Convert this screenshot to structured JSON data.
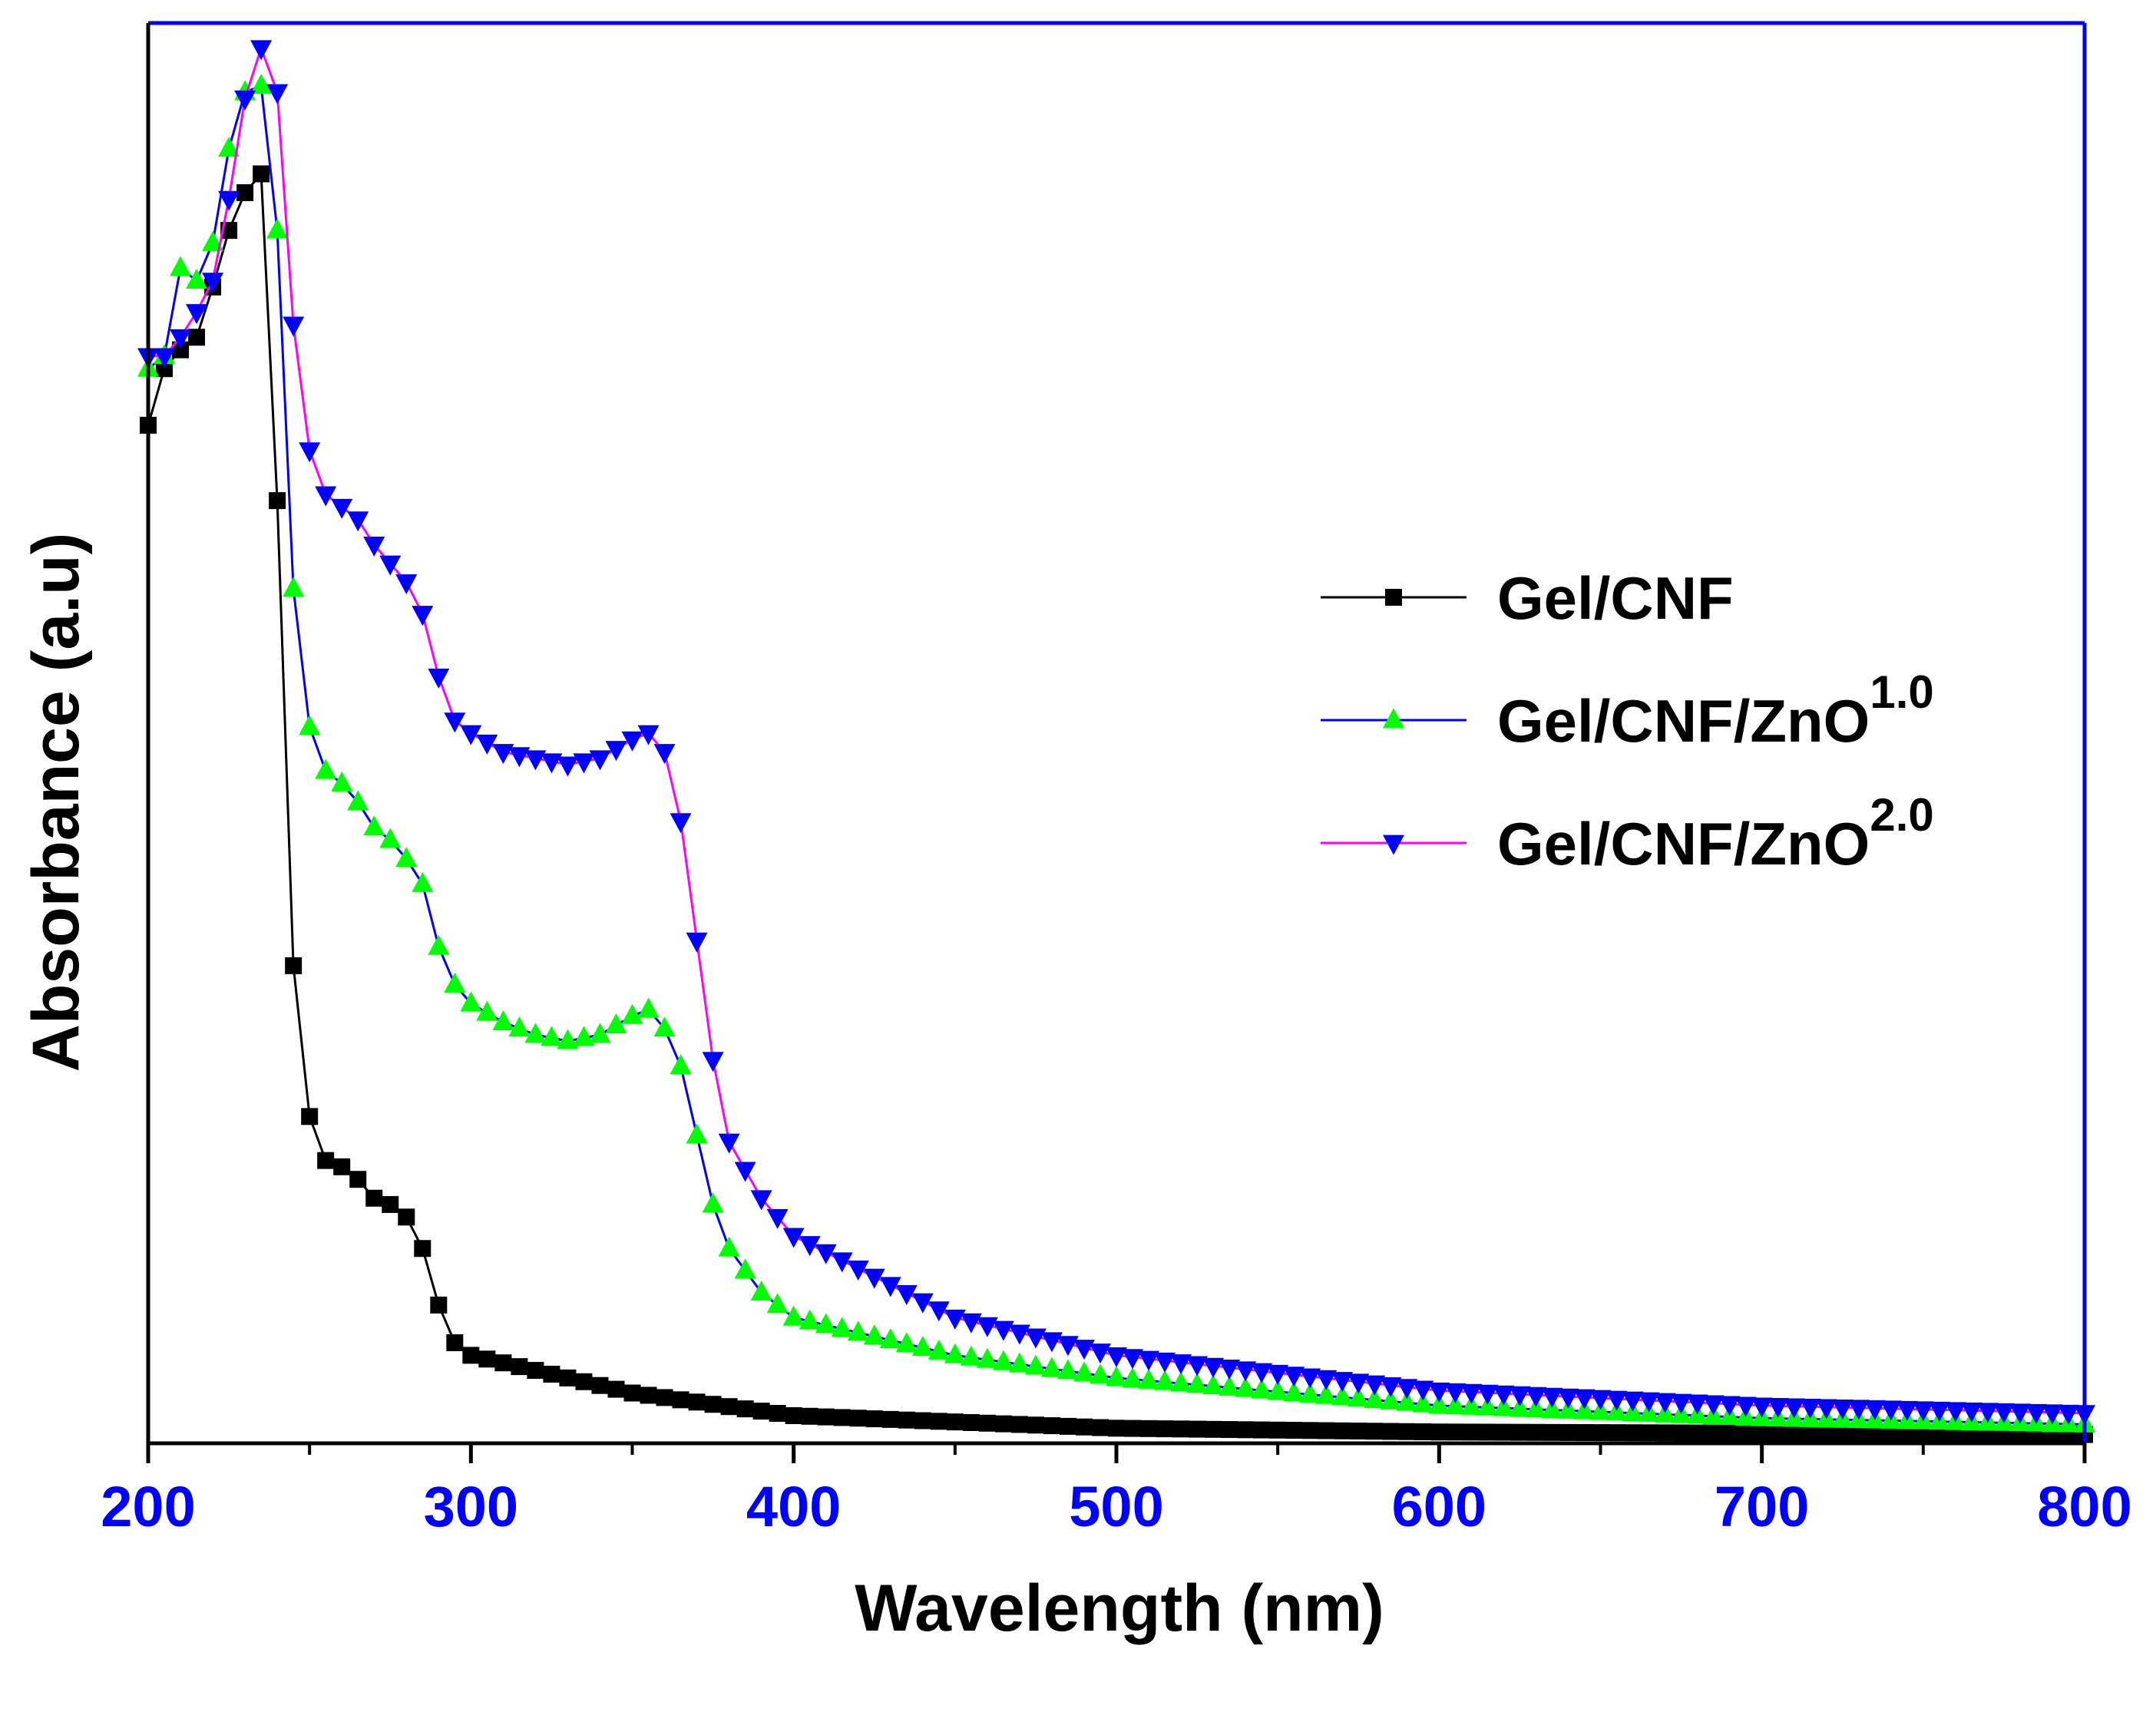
{
  "chart_data": {
    "type": "line",
    "title": "",
    "xlabel": "Wavelength (nm)",
    "ylabel": "Absorbance (a.u)",
    "xlim": [
      200,
      800
    ],
    "ylim": [
      0,
      1.13
    ],
    "x_ticks": [
      "200",
      "300",
      "400",
      "500",
      "600",
      "700",
      "800"
    ],
    "y_ticks_shown": false,
    "grid": false,
    "legend_position": "right-center",
    "colors": {
      "frame": "#0000ff",
      "axis": "#000000",
      "tick_label": "#0000ff",
      "axis_title": "#000000"
    },
    "series": [
      {
        "name": "Gel/CNF",
        "name_base": "Gel/CNF",
        "name_superscript": "",
        "marker": "square",
        "line_color": "#000000",
        "marker_color": "#000000",
        "x": [
          200,
          205,
          210,
          215,
          220,
          225,
          230,
          235,
          240,
          245,
          250,
          255,
          260,
          265,
          270,
          275,
          280,
          285,
          290,
          295,
          300,
          350,
          400,
          500,
          600,
          700,
          800
        ],
        "y": [
          0.81,
          0.855,
          0.87,
          0.88,
          0.92,
          0.965,
          0.995,
          1.01,
          0.75,
          0.38,
          0.26,
          0.225,
          0.22,
          0.21,
          0.195,
          0.19,
          0.18,
          0.155,
          0.11,
          0.08,
          0.07,
          0.04,
          0.022,
          0.012,
          0.009,
          0.008,
          0.007
        ]
      },
      {
        "name": "Gel/CNF/ZnO1.0",
        "name_base": "Gel/CNF/ZnO",
        "name_superscript": "1.0",
        "marker": "triangle-up",
        "line_color": "#0000ff",
        "marker_color": "#00ff00",
        "x": [
          200,
          205,
          210,
          215,
          220,
          225,
          230,
          235,
          240,
          245,
          250,
          255,
          260,
          265,
          270,
          275,
          280,
          285,
          290,
          295,
          300,
          310,
          320,
          330,
          340,
          350,
          355,
          360,
          365,
          370,
          375,
          380,
          390,
          400,
          450,
          500,
          600,
          700,
          800
        ],
        "y": [
          0.855,
          0.865,
          0.935,
          0.925,
          0.955,
          1.03,
          1.075,
          1.08,
          0.965,
          0.68,
          0.57,
          0.535,
          0.525,
          0.51,
          0.49,
          0.48,
          0.465,
          0.445,
          0.395,
          0.365,
          0.35,
          0.335,
          0.325,
          0.32,
          0.325,
          0.34,
          0.345,
          0.33,
          0.3,
          0.245,
          0.19,
          0.155,
          0.12,
          0.1,
          0.07,
          0.052,
          0.03,
          0.02,
          0.015
        ]
      },
      {
        "name": "Gel/CNF/ZnO2.0",
        "name_base": "Gel/CNF/ZnO",
        "name_superscript": "2.0",
        "marker": "triangle-down",
        "line_color": "#ff00ff",
        "marker_color": "#0000ff",
        "x": [
          200,
          205,
          210,
          215,
          220,
          225,
          230,
          235,
          240,
          245,
          250,
          255,
          260,
          265,
          270,
          275,
          280,
          285,
          290,
          295,
          300,
          310,
          320,
          330,
          340,
          350,
          355,
          360,
          365,
          370,
          375,
          380,
          390,
          400,
          450,
          500,
          600,
          700,
          800
        ],
        "y": [
          0.865,
          0.865,
          0.88,
          0.9,
          0.925,
          0.99,
          1.07,
          1.11,
          1.075,
          0.89,
          0.79,
          0.755,
          0.745,
          0.735,
          0.715,
          0.7,
          0.685,
          0.66,
          0.61,
          0.575,
          0.565,
          0.55,
          0.545,
          0.54,
          0.545,
          0.56,
          0.565,
          0.55,
          0.495,
          0.4,
          0.305,
          0.24,
          0.195,
          0.165,
          0.1,
          0.07,
          0.042,
          0.03,
          0.024
        ]
      }
    ]
  }
}
